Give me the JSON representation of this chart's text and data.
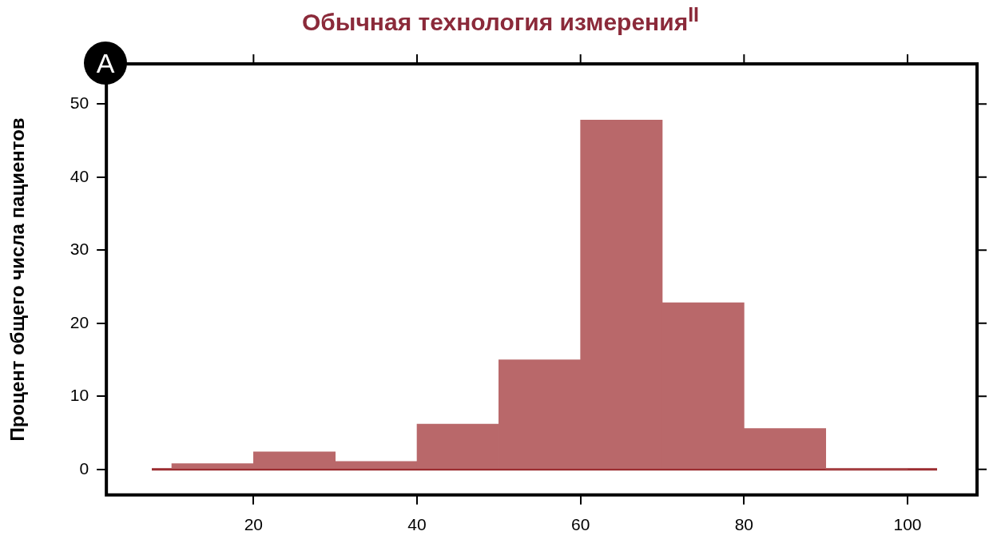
{
  "chart_data": {
    "type": "histogram",
    "title": "Обычная технология измерения$^{II}$",
    "ylabel": "Процент общего числа пациентов",
    "bins": [
      10,
      20,
      30,
      40,
      50,
      60,
      70,
      80,
      90,
      100
    ],
    "values": [
      0.8,
      2.4,
      1.1,
      6.2,
      15,
      47.8,
      22.8,
      5.6,
      0
    ],
    "color": "#b9686a",
    "xlim": [
      2,
      108.5
    ],
    "xticks": [
      20,
      40,
      60,
      80,
      100
    ],
    "ylim": [
      -3.5,
      55.5
    ],
    "yticks": [
      0,
      10,
      20,
      30,
      40,
      50
    ],
    "ref_lines": [
      {
        "axis": "y",
        "value": 0,
        "color": "#9b2c30"
      }
    ],
    "annotations": [
      "A"
    ],
    "grid": false,
    "legend": false
  }
}
